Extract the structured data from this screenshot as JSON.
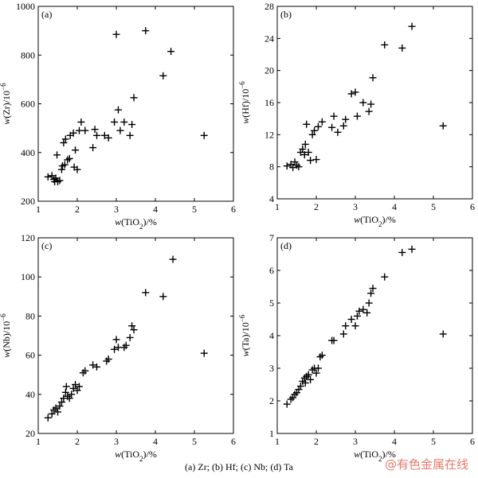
{
  "caption": "(a) Zr; (b) Hf; (c) Nb; (d) Ta",
  "watermark": "@有色金属在线",
  "chart_data": [
    {
      "type": "scatter",
      "panel_tag": "(a)",
      "xlabel_var": "w",
      "xlabel_arg": "(TiO",
      "xlabel_sub": "2",
      "xlabel_tail": ")/%",
      "ylabel_var": "w",
      "ylabel_arg": "(Zr)/10",
      "ylabel_sup": "−6",
      "xlim": [
        1,
        6
      ],
      "ylim": [
        200,
        1000
      ],
      "xticks": [
        1,
        2,
        3,
        4,
        5,
        6
      ],
      "yticks": [
        200,
        400,
        600,
        800,
        1000
      ],
      "grid": false,
      "points": [
        [
          1.25,
          300
        ],
        [
          1.35,
          305
        ],
        [
          1.4,
          290
        ],
        [
          1.42,
          280
        ],
        [
          1.45,
          295
        ],
        [
          1.48,
          390
        ],
        [
          1.5,
          280
        ],
        [
          1.55,
          285
        ],
        [
          1.6,
          330
        ],
        [
          1.62,
          345
        ],
        [
          1.65,
          440
        ],
        [
          1.68,
          350
        ],
        [
          1.7,
          455
        ],
        [
          1.75,
          370
        ],
        [
          1.8,
          375
        ],
        [
          1.82,
          470
        ],
        [
          1.9,
          480
        ],
        [
          1.92,
          340
        ],
        [
          1.95,
          410
        ],
        [
          2.0,
          330
        ],
        [
          2.05,
          490
        ],
        [
          2.1,
          525
        ],
        [
          2.2,
          490
        ],
        [
          2.4,
          420
        ],
        [
          2.45,
          495
        ],
        [
          2.5,
          470
        ],
        [
          2.7,
          470
        ],
        [
          2.8,
          460
        ],
        [
          2.95,
          525
        ],
        [
          3.0,
          885
        ],
        [
          3.05,
          575
        ],
        [
          3.1,
          490
        ],
        [
          3.2,
          525
        ],
        [
          3.35,
          470
        ],
        [
          3.4,
          515
        ],
        [
          3.45,
          625
        ],
        [
          3.75,
          900
        ],
        [
          4.2,
          715
        ],
        [
          4.4,
          815
        ],
        [
          5.25,
          470
        ]
      ]
    },
    {
      "type": "scatter",
      "panel_tag": "(b)",
      "xlabel_var": "w",
      "xlabel_arg": "(TiO",
      "xlabel_sub": "2",
      "xlabel_tail": ")/%",
      "ylabel_var": "w",
      "ylabel_arg": "(Hf)/10",
      "ylabel_sup": "−6",
      "xlim": [
        1,
        6
      ],
      "ylim": [
        4,
        28
      ],
      "xticks": [
        1,
        2,
        3,
        4,
        5,
        6
      ],
      "yticks": [
        4,
        8,
        12,
        16,
        20,
        24,
        28
      ],
      "grid": false,
      "points": [
        [
          1.25,
          8.1
        ],
        [
          1.35,
          8.3
        ],
        [
          1.4,
          7.9
        ],
        [
          1.45,
          8.6
        ],
        [
          1.5,
          8.2
        ],
        [
          1.55,
          8.0
        ],
        [
          1.6,
          9.8
        ],
        [
          1.65,
          10.2
        ],
        [
          1.7,
          9.5
        ],
        [
          1.72,
          10.8
        ],
        [
          1.75,
          13.3
        ],
        [
          1.8,
          9.8
        ],
        [
          1.85,
          8.8
        ],
        [
          1.9,
          12.0
        ],
        [
          1.95,
          12.5
        ],
        [
          2.0,
          8.9
        ],
        [
          2.05,
          13.0
        ],
        [
          2.15,
          13.6
        ],
        [
          2.4,
          12.9
        ],
        [
          2.45,
          14.3
        ],
        [
          2.55,
          12.3
        ],
        [
          2.7,
          13.1
        ],
        [
          2.75,
          13.9
        ],
        [
          2.9,
          17.1
        ],
        [
          3.0,
          17.3
        ],
        [
          3.05,
          14.3
        ],
        [
          3.2,
          16.0
        ],
        [
          3.35,
          14.9
        ],
        [
          3.4,
          15.8
        ],
        [
          3.45,
          19.1
        ],
        [
          3.75,
          23.2
        ],
        [
          4.2,
          22.8
        ],
        [
          4.45,
          25.5
        ],
        [
          5.25,
          13.1
        ]
      ]
    },
    {
      "type": "scatter",
      "panel_tag": "(c)",
      "xlabel_var": "w",
      "xlabel_arg": "(TiO",
      "xlabel_sub": "2",
      "xlabel_tail": ")/%",
      "ylabel_var": "w",
      "ylabel_arg": "(Nb)/10",
      "ylabel_sup": "−6",
      "xlim": [
        1,
        6
      ],
      "ylim": [
        20,
        120
      ],
      "xticks": [
        1,
        2,
        3,
        4,
        5,
        6
      ],
      "yticks": [
        20,
        40,
        60,
        80,
        100,
        120
      ],
      "grid": false,
      "points": [
        [
          1.25,
          28
        ],
        [
          1.35,
          30
        ],
        [
          1.4,
          32
        ],
        [
          1.45,
          33
        ],
        [
          1.5,
          31
        ],
        [
          1.55,
          34
        ],
        [
          1.6,
          36
        ],
        [
          1.65,
          38
        ],
        [
          1.7,
          41
        ],
        [
          1.72,
          44
        ],
        [
          1.75,
          39
        ],
        [
          1.8,
          38
        ],
        [
          1.85,
          40
        ],
        [
          1.9,
          43
        ],
        [
          1.95,
          45
        ],
        [
          2.0,
          42
        ],
        [
          2.05,
          44
        ],
        [
          2.15,
          51
        ],
        [
          2.2,
          52
        ],
        [
          2.4,
          55
        ],
        [
          2.5,
          54
        ],
        [
          2.75,
          57
        ],
        [
          2.8,
          58
        ],
        [
          2.95,
          63
        ],
        [
          3.0,
          68
        ],
        [
          3.05,
          64
        ],
        [
          3.2,
          64
        ],
        [
          3.25,
          65
        ],
        [
          3.35,
          69
        ],
        [
          3.4,
          75
        ],
        [
          3.45,
          73
        ],
        [
          3.75,
          92
        ],
        [
          4.2,
          90
        ],
        [
          4.45,
          109
        ],
        [
          5.25,
          61
        ]
      ]
    },
    {
      "type": "scatter",
      "panel_tag": "(d)",
      "xlabel_var": "w",
      "xlabel_arg": "(TiO",
      "xlabel_sub": "2",
      "xlabel_tail": ")/%",
      "ylabel_var": "w",
      "ylabel_arg": "(Ta)/10",
      "ylabel_sup": "−6",
      "xlim": [
        1,
        6
      ],
      "ylim": [
        1,
        7
      ],
      "xticks": [
        1,
        2,
        3,
        4,
        5,
        6
      ],
      "yticks": [
        1,
        2,
        3,
        4,
        5,
        6,
        7
      ],
      "grid": false,
      "points": [
        [
          1.25,
          1.9
        ],
        [
          1.35,
          2.05
        ],
        [
          1.4,
          2.1
        ],
        [
          1.45,
          2.2
        ],
        [
          1.5,
          2.25
        ],
        [
          1.55,
          2.35
        ],
        [
          1.6,
          2.45
        ],
        [
          1.65,
          2.6
        ],
        [
          1.7,
          2.7
        ],
        [
          1.72,
          2.55
        ],
        [
          1.75,
          2.75
        ],
        [
          1.8,
          2.8
        ],
        [
          1.85,
          2.65
        ],
        [
          1.9,
          2.95
        ],
        [
          1.95,
          3.0
        ],
        [
          2.0,
          2.85
        ],
        [
          2.05,
          3.0
        ],
        [
          2.1,
          3.35
        ],
        [
          2.15,
          3.4
        ],
        [
          2.4,
          3.85
        ],
        [
          2.45,
          3.85
        ],
        [
          2.7,
          4.05
        ],
        [
          2.75,
          4.3
        ],
        [
          2.9,
          4.5
        ],
        [
          3.0,
          4.3
        ],
        [
          3.05,
          4.6
        ],
        [
          3.1,
          4.75
        ],
        [
          3.2,
          4.8
        ],
        [
          3.3,
          4.7
        ],
        [
          3.35,
          5.0
        ],
        [
          3.4,
          5.3
        ],
        [
          3.45,
          5.45
        ],
        [
          3.75,
          5.8
        ],
        [
          4.2,
          6.55
        ],
        [
          4.45,
          6.65
        ],
        [
          5.25,
          4.05
        ]
      ]
    }
  ]
}
